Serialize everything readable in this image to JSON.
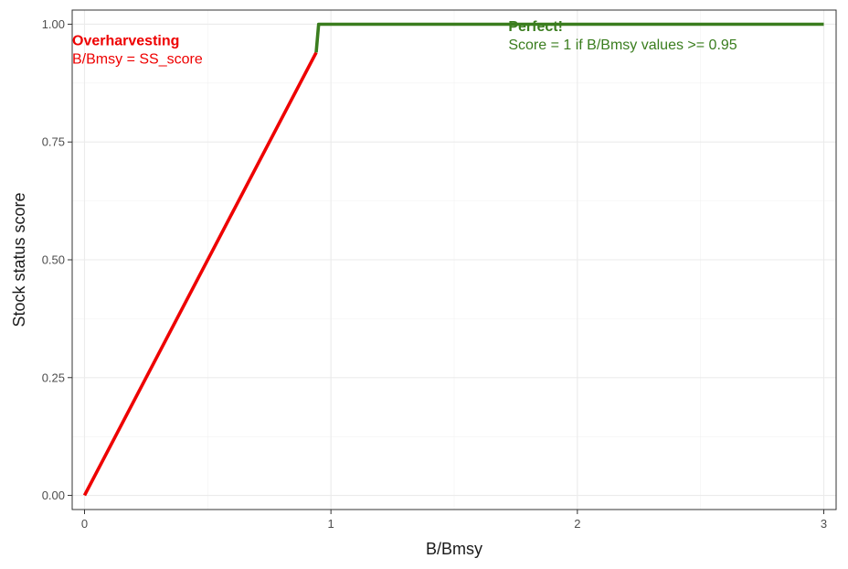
{
  "chart_data": {
    "type": "line",
    "title": "",
    "xlabel": "B/Bmsy",
    "ylabel": "Stock status score",
    "xlim": [
      -0.05,
      3.05
    ],
    "ylim": [
      -0.03,
      1.03
    ],
    "x_ticks": [
      0,
      1,
      2,
      3
    ],
    "x_tick_labels": [
      "0",
      "1",
      "2",
      "3"
    ],
    "y_ticks": [
      0,
      0.25,
      0.5,
      0.75,
      1
    ],
    "y_tick_labels": [
      "0.00",
      "0.25",
      "0.50",
      "0.75",
      "1.00"
    ],
    "grid": true,
    "legend": "none",
    "series": [
      {
        "color": "#ee0000",
        "x": [
          0,
          0.94
        ],
        "y": [
          0,
          0.94
        ]
      },
      {
        "color": "#3a7d1e",
        "x": [
          0.94,
          0.95,
          3.0
        ],
        "y": [
          0.94,
          1.0,
          1.0
        ]
      }
    ],
    "annotations": [
      {
        "title": "Overharvesting",
        "text": "B/Bmsy = SS_score",
        "color": "#ee0000",
        "x": -0.05,
        "y": 0.955
      },
      {
        "title": "Perfect!",
        "text": "Score = 1 if B/Bmsy values >= 0.95",
        "color": "#3a7d1e",
        "x": 1.72,
        "y": 0.985
      }
    ]
  }
}
